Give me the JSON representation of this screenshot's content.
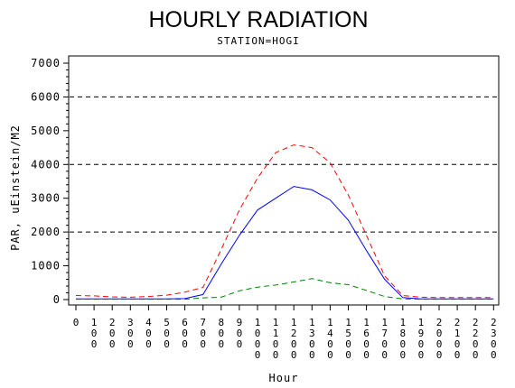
{
  "chart_data": {
    "type": "line",
    "title": "HOURLY RADIATION",
    "subtitle": "STATION=HOGI",
    "xlabel": "Hour",
    "ylabel": "PAR, uEinstein/M2",
    "ylim": [
      0,
      7000
    ],
    "yticks": [
      "0",
      "1000",
      "2000",
      "3000",
      "4000",
      "5000",
      "6000",
      "7000"
    ],
    "reference_lines": [
      2000,
      4000,
      6000
    ],
    "categories": [
      "0",
      "100",
      "200",
      "300",
      "400",
      "500",
      "600",
      "700",
      "800",
      "900",
      "1000",
      "1100",
      "1200",
      "1300",
      "1400",
      "1500",
      "1600",
      "1700",
      "1800",
      "1900",
      "2000",
      "2100",
      "2200",
      "2300"
    ],
    "series": [
      {
        "color": "#ff0000",
        "dash": "dashed",
        "values": [
          120,
          110,
          80,
          70,
          90,
          130,
          220,
          360,
          1480,
          2650,
          3600,
          4350,
          4580,
          4500,
          4050,
          3100,
          1900,
          700,
          120,
          70,
          60,
          60,
          60,
          60
        ]
      },
      {
        "color": "#0000ff",
        "dash": "solid",
        "values": [
          20,
          20,
          20,
          20,
          20,
          20,
          30,
          150,
          1050,
          1900,
          2650,
          3000,
          3350,
          3250,
          2950,
          2350,
          1450,
          600,
          60,
          20,
          20,
          20,
          20,
          20
        ]
      },
      {
        "color": "#008000",
        "dash": "dashed",
        "values": [
          10,
          10,
          10,
          10,
          10,
          10,
          10,
          50,
          70,
          260,
          370,
          430,
          520,
          620,
          500,
          440,
          270,
          90,
          20,
          10,
          10,
          10,
          10,
          10
        ]
      }
    ]
  }
}
